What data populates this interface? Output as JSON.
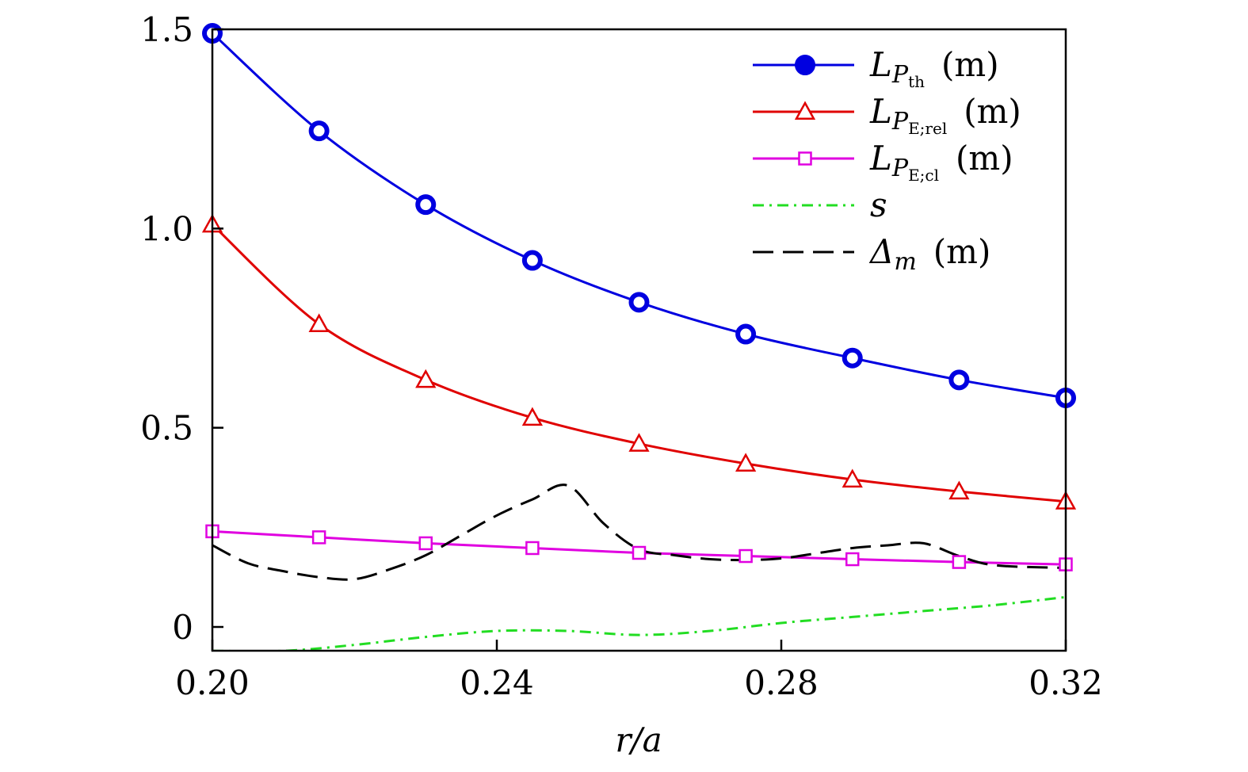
{
  "chart_data": {
    "type": "line",
    "title": "",
    "xlabel": "r/a",
    "ylabel": "",
    "xlim": [
      0.2,
      0.32
    ],
    "ylim": [
      -0.06,
      1.5
    ],
    "xticks": [
      {
        "value": 0.2,
        "label": "0.20"
      },
      {
        "value": 0.24,
        "label": "0.24"
      },
      {
        "value": 0.28,
        "label": "0.28"
      },
      {
        "value": 0.32,
        "label": "0.32"
      }
    ],
    "yticks": [
      {
        "value": 0,
        "label": "0"
      },
      {
        "value": 0.5,
        "label": "0.5"
      },
      {
        "value": 1.0,
        "label": "1.0"
      },
      {
        "value": 1.5,
        "label": "1.5"
      }
    ],
    "legend_position": "top-right",
    "series": [
      {
        "name": "L_Pth (m)",
        "legend_main": "L",
        "legend_p": "P",
        "legend_sub": "th",
        "legend_unit": "(m)",
        "color": "#0000e0",
        "marker": "circle",
        "dash": "",
        "x": [
          0.2,
          0.215,
          0.23,
          0.245,
          0.26,
          0.275,
          0.29,
          0.305,
          0.32
        ],
        "y": [
          1.49,
          1.245,
          1.06,
          0.92,
          0.815,
          0.735,
          0.675,
          0.62,
          0.575
        ]
      },
      {
        "name": "L_PE;rel (m)",
        "legend_main": "L",
        "legend_p": "P",
        "legend_sub": "E;rel",
        "legend_unit": "(m)",
        "color": "#e00000",
        "marker": "triangle",
        "dash": "",
        "x": [
          0.2,
          0.215,
          0.23,
          0.245,
          0.26,
          0.275,
          0.29,
          0.305,
          0.32
        ],
        "y": [
          1.01,
          0.76,
          0.62,
          0.525,
          0.46,
          0.41,
          0.37,
          0.34,
          0.315
        ]
      },
      {
        "name": "L_PE;cl (m)",
        "legend_main": "L",
        "legend_p": "P",
        "legend_sub": "E;cl",
        "legend_unit": "(m)",
        "color": "#e000e0",
        "marker": "square",
        "dash": "",
        "x": [
          0.2,
          0.215,
          0.23,
          0.245,
          0.26,
          0.275,
          0.29,
          0.305,
          0.32
        ],
        "y": [
          0.24,
          0.225,
          0.21,
          0.198,
          0.186,
          0.178,
          0.17,
          0.163,
          0.157
        ]
      },
      {
        "name": "s",
        "legend_main": "s",
        "legend_p": "",
        "legend_sub": "",
        "legend_unit": "",
        "color": "#22dd22",
        "marker": "none",
        "dash": "14 7 3 7",
        "x": [
          0.2,
          0.21,
          0.22,
          0.23,
          0.24,
          0.25,
          0.26,
          0.27,
          0.28,
          0.29,
          0.3,
          0.31,
          0.32
        ],
        "y": [
          -0.06,
          -0.06,
          -0.045,
          -0.025,
          -0.01,
          -0.01,
          -0.02,
          -0.01,
          0.01,
          0.025,
          0.04,
          0.055,
          0.075
        ]
      },
      {
        "name": "Δm (m)",
        "legend_main": "Δ",
        "legend_p": "",
        "legend_sub": "m",
        "legend_unit": "(m)",
        "color": "#000000",
        "marker": "none",
        "dash": "26 12",
        "x": [
          0.2,
          0.205,
          0.21,
          0.215,
          0.22,
          0.225,
          0.23,
          0.235,
          0.24,
          0.245,
          0.25,
          0.255,
          0.26,
          0.265,
          0.27,
          0.275,
          0.28,
          0.285,
          0.29,
          0.295,
          0.3,
          0.305,
          0.31,
          0.32
        ],
        "y": [
          0.205,
          0.16,
          0.14,
          0.125,
          0.12,
          0.145,
          0.18,
          0.23,
          0.28,
          0.32,
          0.355,
          0.26,
          0.195,
          0.18,
          0.17,
          0.168,
          0.172,
          0.185,
          0.198,
          0.205,
          0.21,
          0.178,
          0.155,
          0.148
        ]
      }
    ]
  }
}
